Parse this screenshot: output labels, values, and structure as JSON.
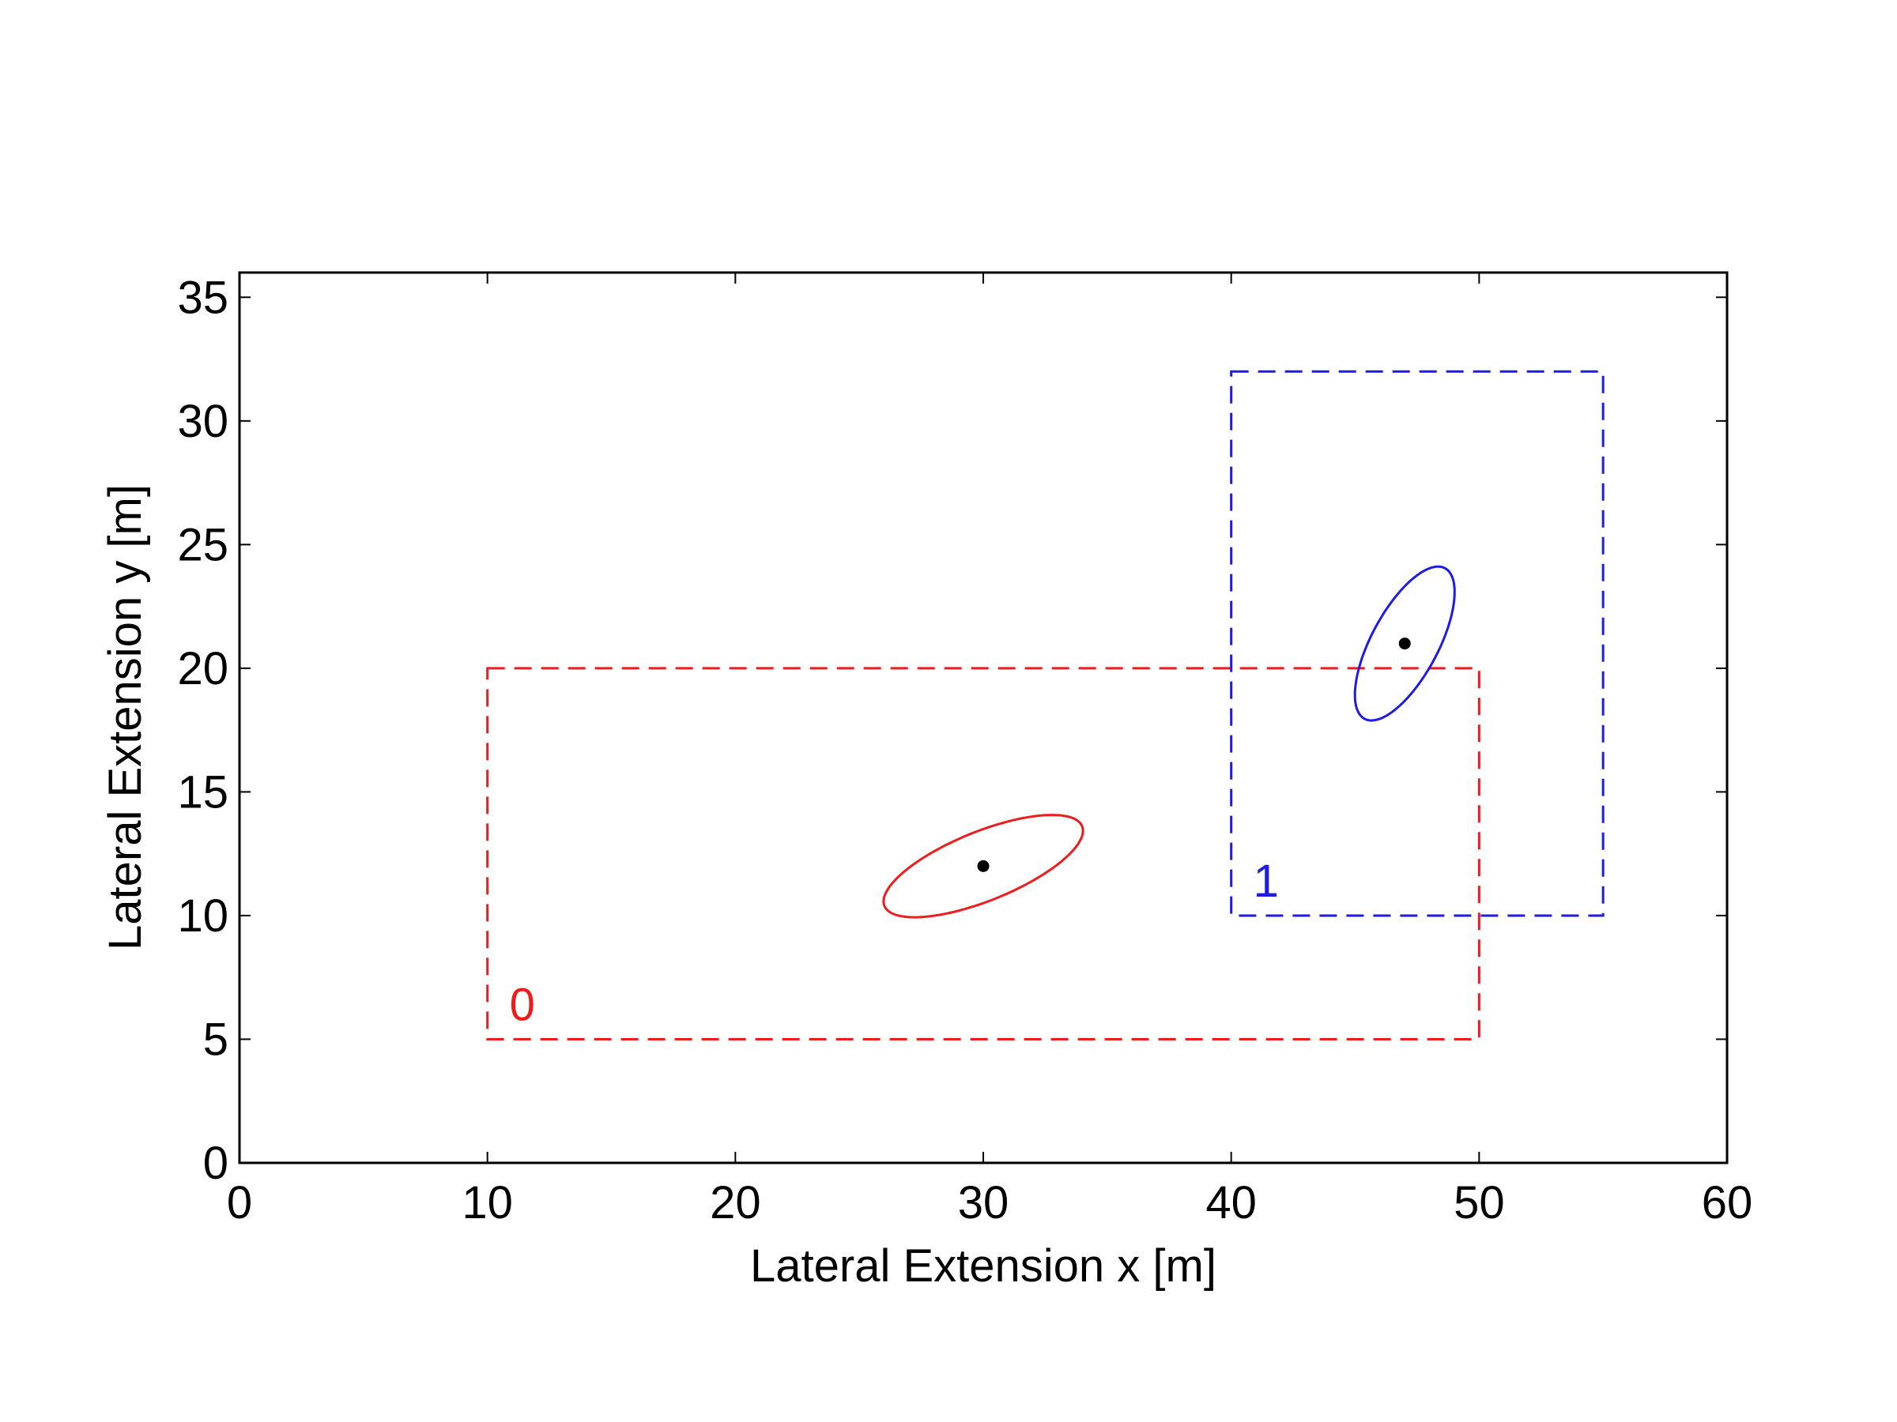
{
  "chart_data": {
    "type": "scatter",
    "title": "",
    "xlabel": "Lateral Extension x [m]",
    "ylabel": "Lateral Extension y [m]",
    "xlim": [
      0,
      60
    ],
    "ylim": [
      0,
      36
    ],
    "xticks": [
      0,
      10,
      20,
      30,
      40,
      50,
      60
    ],
    "yticks": [
      0,
      5,
      10,
      15,
      20,
      25,
      30,
      35
    ],
    "xtick_labels": [
      "0",
      "10",
      "20",
      "30",
      "40",
      "50",
      "60"
    ],
    "ytick_labels": [
      "0",
      "5",
      "10",
      "15",
      "20",
      "25",
      "30",
      "35"
    ],
    "grid": false,
    "legend": "none",
    "regions": [
      {
        "label": "0",
        "color": "#ee1c1c",
        "x_min": 10,
        "x_max": 50,
        "y_min": 5,
        "y_max": 20,
        "line_style": "dashed"
      },
      {
        "label": "1",
        "color": "#1c1ce6",
        "x_min": 40,
        "x_max": 55,
        "y_min": 10,
        "y_max": 32,
        "line_style": "dashed"
      }
    ],
    "points": [
      {
        "x": 30,
        "y": 12,
        "color": "#000000"
      },
      {
        "x": 47,
        "y": 21,
        "color": "#000000"
      }
    ],
    "ellipses": [
      {
        "cx": 30,
        "cy": 12,
        "rx": 4.3,
        "ry": 1.4,
        "angle_deg": 22,
        "color": "#ee1c1c"
      },
      {
        "cx": 47,
        "cy": 21,
        "rx": 3.45,
        "ry": 1.35,
        "angle_deg": 62,
        "color": "#1c1ce6"
      }
    ]
  }
}
